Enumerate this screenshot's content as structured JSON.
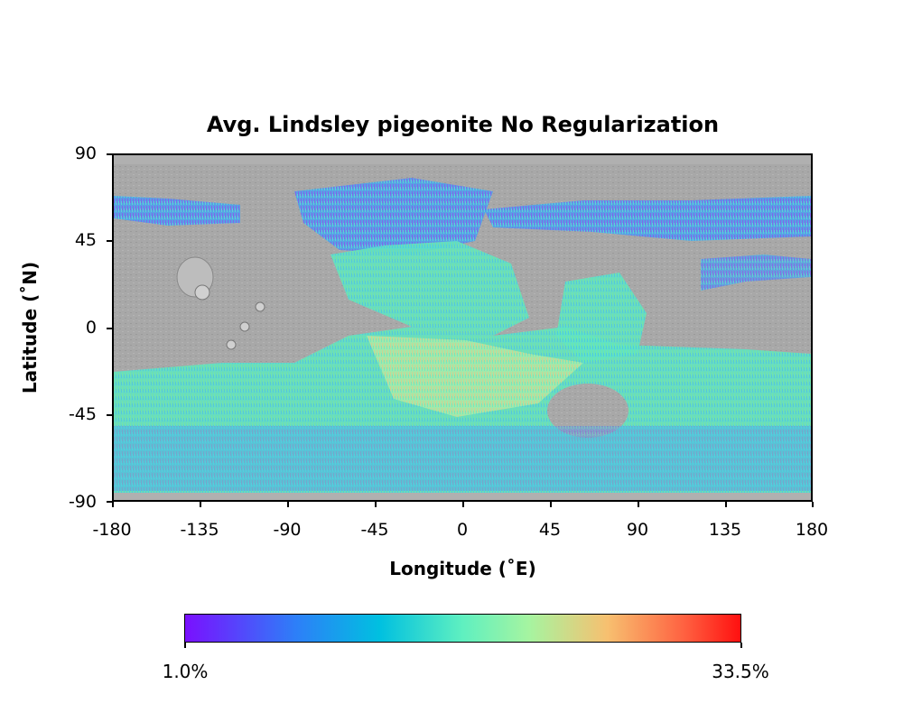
{
  "title": "Avg. Lindsley pigeonite No Regularization",
  "xlabel": "Longitude (˚E)",
  "ylabel": "Latitude (˚N)",
  "xticks": [
    "-180",
    "-135",
    "-90",
    "-45",
    "0",
    "45",
    "90",
    "135",
    "180"
  ],
  "yticks": [
    "90",
    "45",
    "0",
    "-45",
    "-90"
  ],
  "colorbar": {
    "min_label": "1.0%",
    "max_label": "33.5%",
    "colormap": "rainbow",
    "min_color": "#7a10ff",
    "max_color": "#ff1010"
  },
  "map": {
    "xlim": [
      -180,
      180
    ],
    "ylim": [
      -90,
      90
    ],
    "basemap": "grayscale shaded relief",
    "overlay": "pigeonite abundance"
  }
}
